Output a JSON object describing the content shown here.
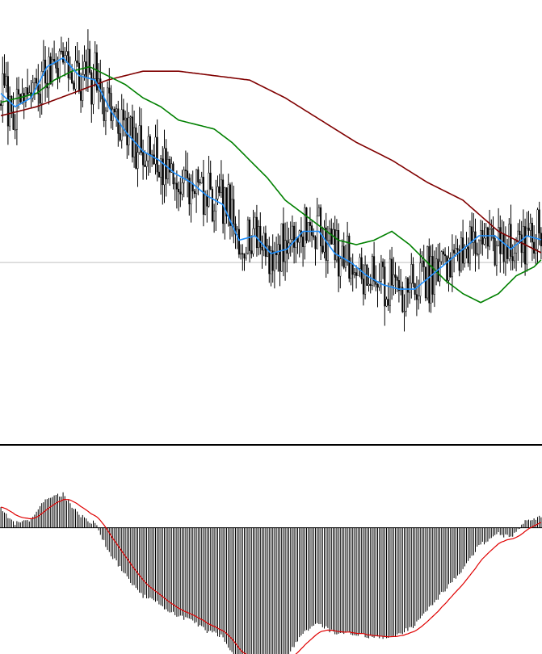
{
  "colors": {
    "background": "#ffffff",
    "candle": "#000000",
    "candle_body_bull": "#ffffff",
    "candle_body_bear": "#000000",
    "ma_fast": "#1e90ff",
    "ma_mid": "#008000",
    "ma_slow": "#800000",
    "osc_hist": "#000000",
    "osc_signal": "#e00000",
    "crosshair": "#c0c0c0",
    "separator": "#000000"
  },
  "chart_data": [
    {
      "type": "candlestick",
      "title": "",
      "xlabel": "",
      "ylabel": "",
      "ylim": [
        0,
        100
      ],
      "grid": false,
      "crosshair_level": 41,
      "candles": [],
      "ma_fast_anchor": [
        [
          0,
          79
        ],
        [
          8,
          76
        ],
        [
          17,
          78
        ],
        [
          26,
          85
        ],
        [
          35,
          87
        ],
        [
          44,
          83
        ],
        [
          53,
          82
        ],
        [
          62,
          75
        ],
        [
          71,
          70
        ],
        [
          80,
          66
        ],
        [
          89,
          64
        ],
        [
          98,
          61
        ],
        [
          107,
          59
        ],
        [
          116,
          56
        ],
        [
          125,
          54
        ],
        [
          134,
          46
        ],
        [
          143,
          47
        ],
        [
          152,
          43
        ],
        [
          161,
          44
        ],
        [
          170,
          48
        ],
        [
          179,
          48
        ],
        [
          188,
          43
        ],
        [
          197,
          41
        ],
        [
          206,
          38
        ],
        [
          215,
          36
        ],
        [
          224,
          35
        ],
        [
          233,
          35
        ],
        [
          242,
          38
        ],
        [
          251,
          41
        ],
        [
          260,
          44
        ],
        [
          269,
          47
        ],
        [
          278,
          47
        ],
        [
          287,
          44
        ],
        [
          296,
          47
        ],
        [
          305,
          46
        ]
      ],
      "ma_mid_anchor": [
        [
          0,
          77
        ],
        [
          10,
          78
        ],
        [
          20,
          79
        ],
        [
          30,
          82
        ],
        [
          40,
          84
        ],
        [
          50,
          85
        ],
        [
          60,
          83
        ],
        [
          70,
          81
        ],
        [
          80,
          78
        ],
        [
          90,
          76
        ],
        [
          100,
          73
        ],
        [
          110,
          72
        ],
        [
          120,
          71
        ],
        [
          130,
          68
        ],
        [
          140,
          64
        ],
        [
          150,
          60
        ],
        [
          160,
          55
        ],
        [
          170,
          52
        ],
        [
          180,
          49
        ],
        [
          190,
          46
        ],
        [
          200,
          45
        ],
        [
          210,
          46
        ],
        [
          220,
          48
        ],
        [
          230,
          45
        ],
        [
          240,
          41
        ],
        [
          250,
          37
        ],
        [
          260,
          34
        ],
        [
          270,
          32
        ],
        [
          280,
          34
        ],
        [
          290,
          38
        ],
        [
          300,
          40
        ],
        [
          305,
          42
        ]
      ],
      "ma_slow_anchor": [
        [
          0,
          74
        ],
        [
          20,
          76
        ],
        [
          40,
          79
        ],
        [
          60,
          82
        ],
        [
          80,
          84
        ],
        [
          100,
          84
        ],
        [
          120,
          83
        ],
        [
          140,
          82
        ],
        [
          160,
          78
        ],
        [
          180,
          73
        ],
        [
          200,
          68
        ],
        [
          220,
          64
        ],
        [
          240,
          59
        ],
        [
          260,
          55
        ],
        [
          280,
          48
        ],
        [
          300,
          44
        ],
        [
          305,
          43
        ]
      ]
    },
    {
      "type": "bar",
      "title": "",
      "xlabel": "",
      "ylabel": "",
      "ylim": [
        -1.4,
        0.9
      ],
      "grid": false,
      "series": [
        {
          "values": []
        },
        {
          "values": []
        }
      ]
    }
  ]
}
